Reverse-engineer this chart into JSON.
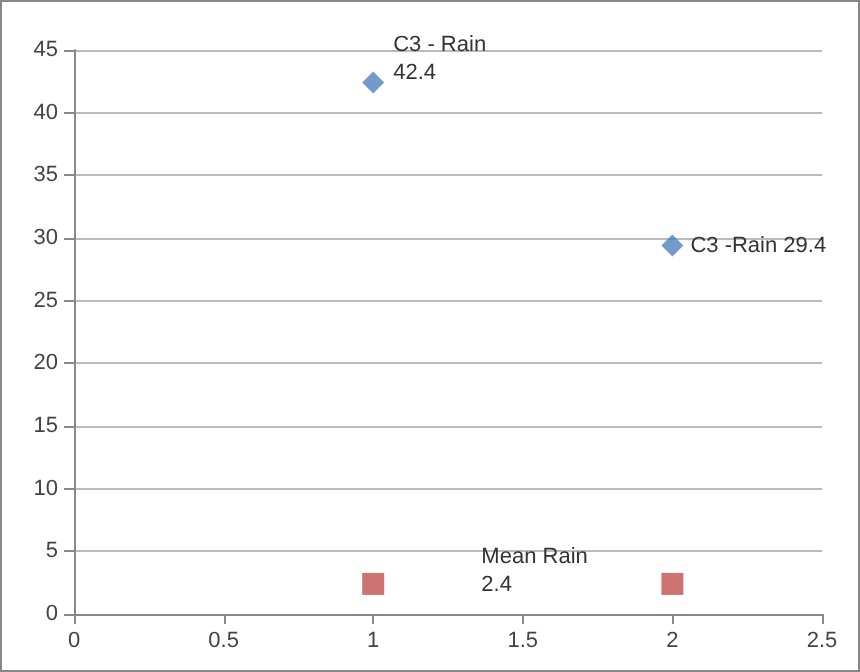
{
  "chart_data": {
    "type": "scatter",
    "x": [
      1,
      2
    ],
    "xlim": [
      0,
      2.5
    ],
    "xticks": [
      0,
      0.5,
      1,
      1.5,
      2,
      2.5
    ],
    "ylim": [
      0,
      45
    ],
    "yticks": [
      0,
      5,
      10,
      15,
      20,
      25,
      30,
      35,
      40,
      45
    ],
    "grid": "y",
    "series": [
      {
        "color": "#4f81bd",
        "marker": "diamond",
        "values": [
          42.4,
          29.4
        ]
      },
      {
        "color": "#c0504d",
        "marker": "square",
        "values": [
          2.4,
          2.4
        ]
      }
    ],
    "annotations": [
      {
        "text": "C3 - Rain\n42.4",
        "x": 1,
        "y": 42.4
      },
      {
        "text": "C3 -Rain 29.4",
        "x": 2,
        "y": 29.4
      },
      "Mean Rain\n2.4"
    ]
  }
}
